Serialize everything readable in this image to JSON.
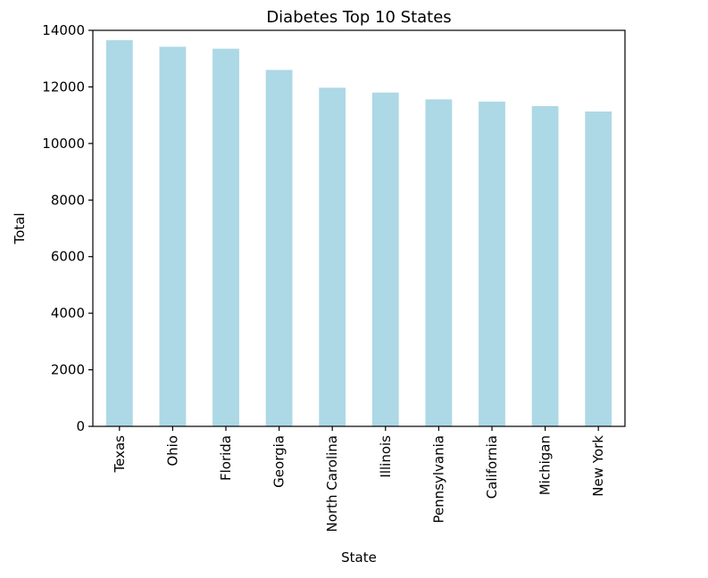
{
  "chart_data": {
    "type": "bar",
    "title": "Diabetes Top 10 States",
    "xlabel": "State",
    "ylabel": "Total",
    "categories": [
      "Texas",
      "Ohio",
      "Florida",
      "Georgia",
      "North Carolina",
      "Illinois",
      "Pennsylvania",
      "California",
      "Michigan",
      "New York"
    ],
    "values": [
      13650,
      13420,
      13350,
      12600,
      11970,
      11800,
      11560,
      11480,
      11320,
      11130
    ],
    "ylim": [
      0,
      14000
    ],
    "yticks": [
      0,
      2000,
      4000,
      6000,
      8000,
      10000,
      12000,
      14000
    ],
    "grid": false,
    "legend": "none",
    "bar_color": "#add8e6"
  }
}
